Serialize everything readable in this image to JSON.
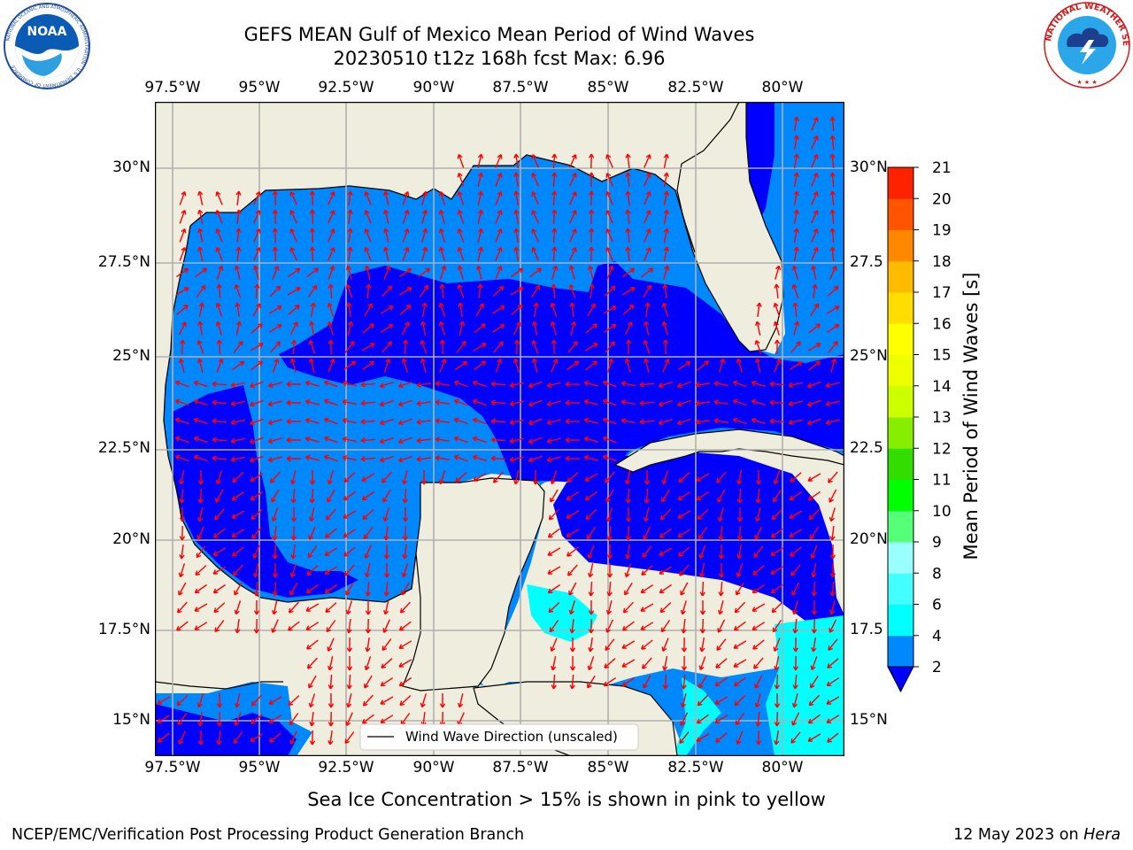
{
  "header": {
    "title_line1": "GEFS MEAN Gulf of Mexico Mean Period of Wind Waves",
    "title_line2": "20230510 t12z 168h fcst   Max: 6.96"
  },
  "logos": {
    "left": "NOAA",
    "left_ring_text": "NATIONAL OCEANIC AND ATMOSPHERIC ADMINISTRATION · U.S. DEPARTMENT OF COMMERCE",
    "right_ring_text": "NATIONAL WEATHER SERVICE"
  },
  "map": {
    "lon_labels": [
      "97.5°W",
      "95°W",
      "92.5°W",
      "90°W",
      "87.5°W",
      "85°W",
      "82.5°W",
      "80°W"
    ],
    "lat_labels_left": [
      "30°N",
      "27.5°N",
      "25°N",
      "22.5°N",
      "20°N",
      "17.5°N",
      "15°N"
    ],
    "lat_labels_right": [
      "30°N",
      "27.5",
      "25°N",
      "22.5",
      "20°N",
      "17.5",
      "15°N"
    ],
    "legend_label": "Wind Wave Direction (unscaled)",
    "colors": {
      "land": "#efedde",
      "grid": "#b0b0b0",
      "arrow": "#ff0000",
      "level_2_4": "#0088ff",
      "below_2": "#0000ff",
      "level_4_6": "#00ffff"
    }
  },
  "colorbar": {
    "label": "Mean Period of Wind Waves [s]",
    "ticks": [
      "2",
      "4",
      "6",
      "8",
      "9",
      "10",
      "11",
      "12",
      "13",
      "14",
      "15",
      "16",
      "17",
      "18",
      "19",
      "20",
      "21"
    ],
    "colors": [
      "#0088ff",
      "#00ffff",
      "#44ffff",
      "#99ffff",
      "#55ff77",
      "#00ff00",
      "#33dd00",
      "#88ee00",
      "#ccff00",
      "#eeff00",
      "#ffff00",
      "#ffdd00",
      "#ffbb00",
      "#ff8800",
      "#ff5500",
      "#ff2200"
    ],
    "under_color": "#0000ff"
  },
  "footer": {
    "note": "Sea Ice Concentration > 15% is shown in pink to yellow",
    "left": "NCEP/EMC/Verification Post Processing Product Generation Branch",
    "date": "12 May 2023 on ",
    "host": "Hera"
  }
}
